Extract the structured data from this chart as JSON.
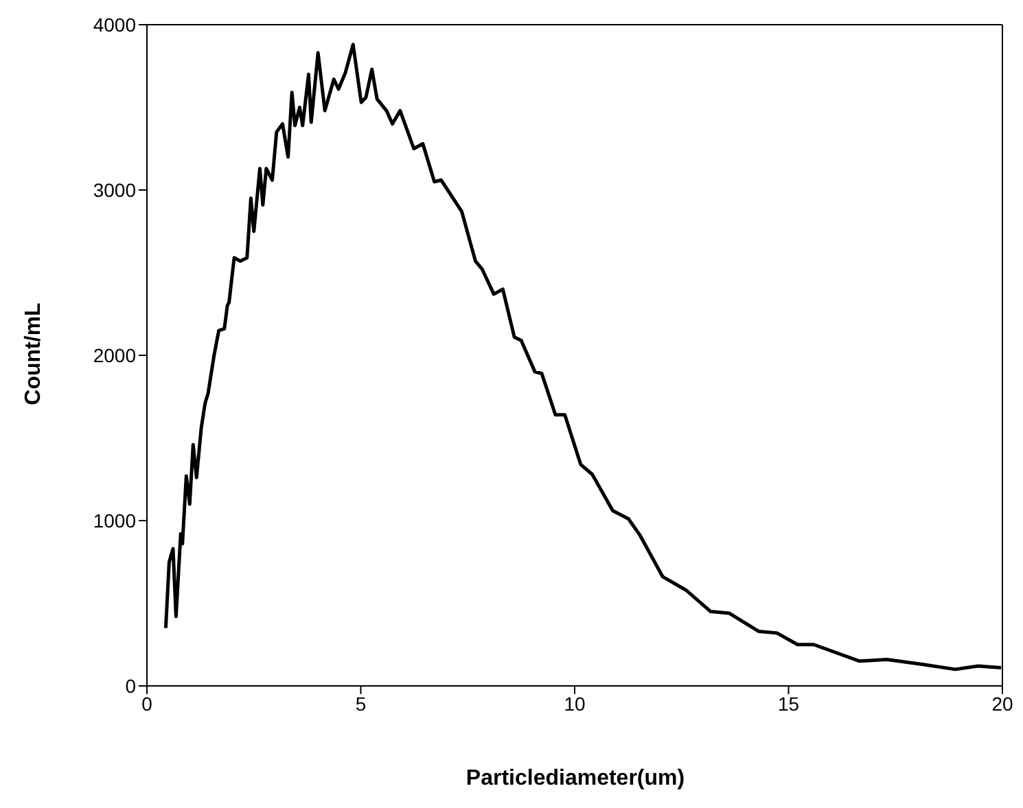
{
  "chart_data": {
    "type": "line",
    "xlabel": "Particlediameter(um)",
    "ylabel": "Count/mL",
    "xlim": [
      0,
      20
    ],
    "xticks": [
      0,
      5,
      10,
      15,
      20
    ],
    "ylim": [
      0,
      4000
    ],
    "yticks": [
      0,
      1000,
      2000,
      3000,
      4000
    ],
    "marker": "none",
    "line_style": "solid",
    "series": [
      {
        "color": "#000000",
        "x": [
          0.44,
          0.52,
          0.61,
          0.68,
          0.79,
          0.83,
          0.92,
          1.0,
          1.08,
          1.16,
          1.27,
          1.36,
          1.43,
          1.57,
          1.68,
          1.81,
          1.88,
          1.92,
          2.04,
          2.18,
          2.34,
          2.43,
          2.5,
          2.64,
          2.71,
          2.79,
          2.93,
          3.03,
          3.17,
          3.3,
          3.39,
          3.46,
          3.57,
          3.64,
          3.78,
          3.84,
          4.0,
          4.16,
          4.37,
          4.48,
          4.64,
          4.82,
          5.01,
          5.12,
          5.26,
          5.38,
          5.6,
          5.74,
          5.92,
          6.24,
          6.45,
          6.72,
          6.88,
          7.36,
          7.68,
          7.84,
          8.11,
          8.32,
          8.59,
          8.75,
          9.07,
          9.23,
          9.55,
          9.77,
          10.14,
          10.41,
          10.89,
          11.26,
          11.53,
          12.06,
          12.6,
          13.18,
          13.61,
          14.3,
          14.73,
          15.21,
          15.59,
          16.66,
          17.3,
          18.15,
          18.9,
          19.43,
          19.97
        ],
        "values": [
          350,
          750,
          830,
          420,
          920,
          860,
          1270,
          1100,
          1460,
          1260,
          1560,
          1710,
          1770,
          2000,
          2150,
          2160,
          2300,
          2320,
          2590,
          2570,
          2590,
          2950,
          2750,
          3130,
          2910,
          3130,
          3060,
          3350,
          3400,
          3200,
          3590,
          3390,
          3500,
          3390,
          3700,
          3410,
          3830,
          3480,
          3670,
          3610,
          3710,
          3880,
          3530,
          3560,
          3730,
          3550,
          3480,
          3400,
          3480,
          3250,
          3280,
          3050,
          3060,
          2870,
          2570,
          2520,
          2370,
          2400,
          2110,
          2090,
          1900,
          1890,
          1640,
          1640,
          1340,
          1280,
          1060,
          1010,
          910,
          660,
          580,
          450,
          440,
          330,
          320,
          250,
          250,
          150,
          160,
          130,
          100,
          120,
          110
        ]
      }
    ]
  }
}
